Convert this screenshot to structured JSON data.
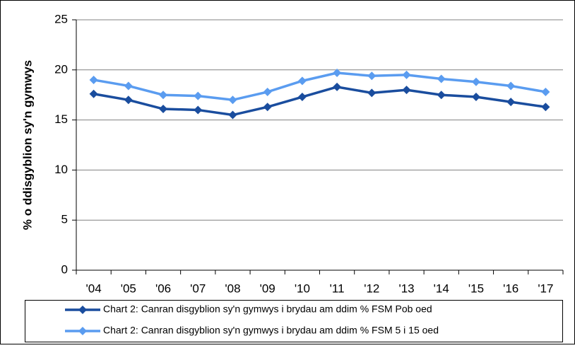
{
  "chart_data": {
    "type": "line",
    "ylabel": "% o ddisgyblion sy'n gymwys",
    "categories": [
      "'04",
      "'05",
      "'06",
      "'07",
      "'08",
      "'09",
      "'10",
      "'11",
      "'12",
      "'13",
      "'14",
      "'15",
      "'16",
      "'17"
    ],
    "series": [
      {
        "name": "Chart 2: Canran disgyblion sy'n gymwys i brydau am ddim % FSM Pob oed",
        "color": "#1a4d9e",
        "values": [
          17.6,
          17.0,
          16.1,
          16.0,
          15.5,
          16.3,
          17.3,
          18.3,
          17.7,
          18.0,
          17.5,
          17.3,
          16.8,
          16.3
        ]
      },
      {
        "name": "Chart 2: Canran disgyblion sy'n gymwys i brydau am ddim % FSM 5 i 15 oed",
        "color": "#5a9cf0",
        "values": [
          19.0,
          18.4,
          17.5,
          17.4,
          17.0,
          17.8,
          18.9,
          19.7,
          19.4,
          19.5,
          19.1,
          18.8,
          18.4,
          17.8
        ]
      }
    ],
    "ylim": [
      0,
      25
    ],
    "yticks": [
      0,
      5,
      10,
      15,
      20,
      25
    ],
    "grid": true,
    "legend": "bottom",
    "marker": "diamond"
  }
}
